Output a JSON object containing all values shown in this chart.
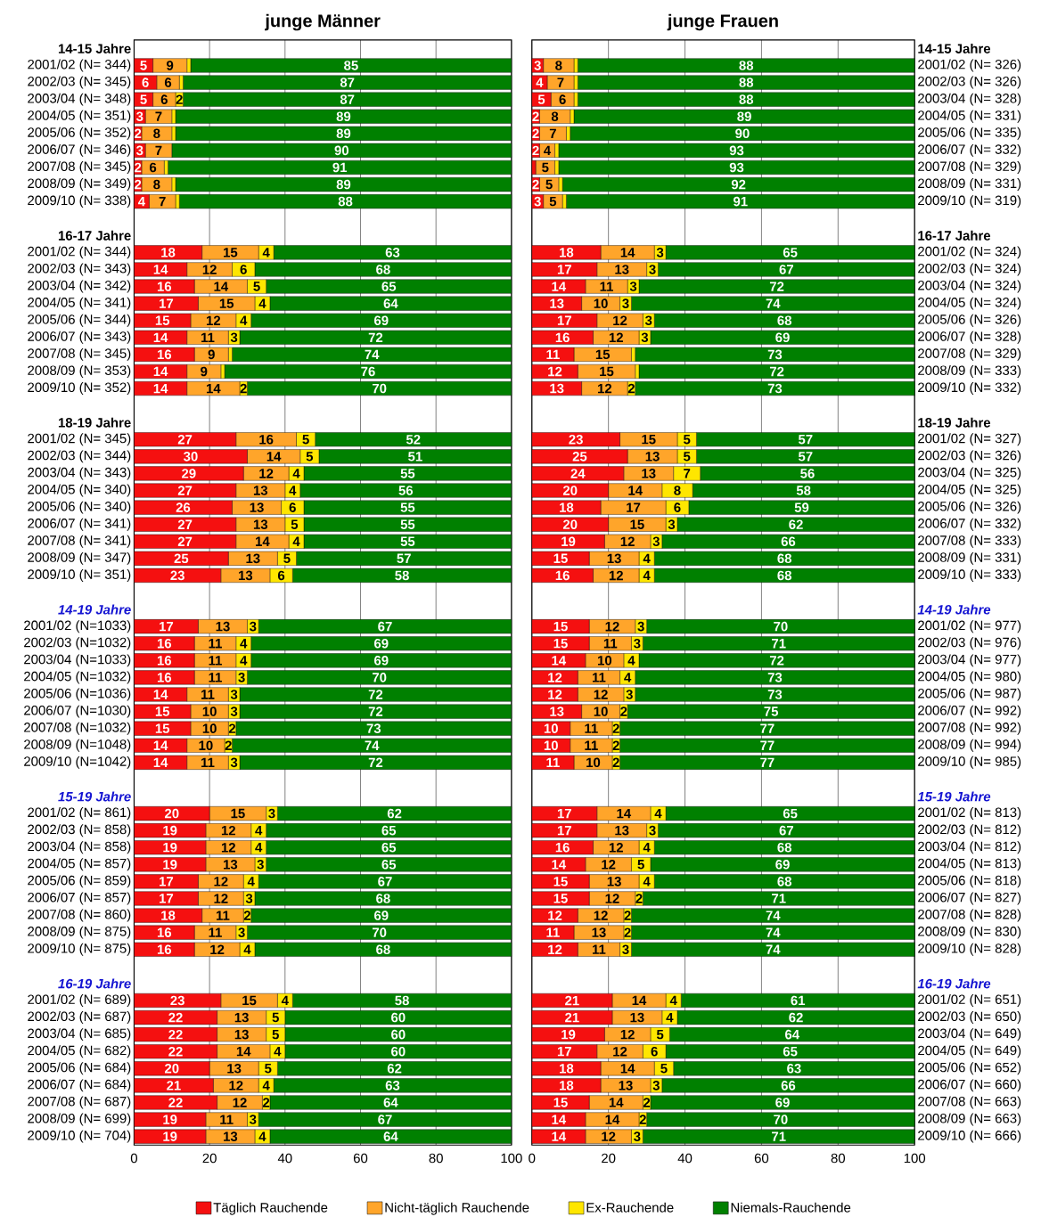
{
  "chart_data": [
    {
      "type": "bar",
      "orientation": "horizontal",
      "stacked": true,
      "title": "junge Männer",
      "xlim": [
        0,
        100
      ],
      "xticks": [
        0,
        20,
        40,
        60,
        80,
        100
      ],
      "grid": "x",
      "legend": "bottom",
      "categories": [
        "14-15 Jahre",
        "2001/02 (N= 344)",
        "2002/03 (N= 345)",
        "2003/04 (N= 348)",
        "2004/05 (N= 351)",
        "2005/06 (N= 352)",
        "2006/07 (N= 346)",
        "2007/08 (N= 345)",
        "2008/09 (N= 349)",
        "2009/10 (N= 338)",
        null,
        "16-17 Jahre",
        "2001/02 (N= 344)",
        "2002/03 (N= 343)",
        "2003/04 (N= 342)",
        "2004/05 (N= 341)",
        "2005/06 (N= 344)",
        "2006/07 (N= 343)",
        "2007/08 (N= 345)",
        "2008/09 (N= 353)",
        "2009/10 (N= 352)",
        null,
        "18-19 Jahre",
        "2001/02 (N= 345)",
        "2002/03 (N= 344)",
        "2003/04 (N= 343)",
        "2004/05 (N= 340)",
        "2005/06 (N= 340)",
        "2006/07 (N= 341)",
        "2007/08 (N= 341)",
        "2008/09 (N= 347)",
        "2009/10 (N= 351)",
        null,
        "14-19 Jahre",
        "2001/02 (N=1033)",
        "2002/03 (N=1032)",
        "2003/04 (N=1033)",
        "2004/05 (N=1032)",
        "2005/06 (N=1036)",
        "2006/07 (N=1030)",
        "2007/08 (N=1032)",
        "2008/09 (N=1048)",
        "2009/10 (N=1042)",
        null,
        "15-19 Jahre",
        "2001/02 (N= 861)",
        "2002/03 (N= 858)",
        "2003/04 (N= 858)",
        "2004/05 (N= 857)",
        "2005/06 (N= 859)",
        "2006/07 (N= 857)",
        "2007/08 (N= 860)",
        "2008/09 (N= 875)",
        "2009/10 (N= 875)",
        null,
        "16-19 Jahre",
        "2001/02 (N= 689)",
        "2002/03 (N= 687)",
        "2003/04 (N= 685)",
        "2004/05 (N= 682)",
        "2005/06 (N= 684)",
        "2006/07 (N= 684)",
        "2007/08 (N= 687)",
        "2008/09 (N= 699)",
        "2009/10 (N= 704)"
      ],
      "series": [
        {
          "name": "Täglich Rauchende",
          "color": "#f51010",
          "values": [
            null,
            5,
            6,
            5,
            3,
            2,
            3,
            2,
            2,
            4,
            null,
            null,
            18,
            14,
            16,
            17,
            15,
            14,
            16,
            14,
            14,
            null,
            null,
            27,
            30,
            29,
            27,
            26,
            27,
            27,
            25,
            23,
            null,
            null,
            17,
            16,
            16,
            16,
            14,
            15,
            15,
            14,
            14,
            null,
            null,
            20,
            19,
            19,
            19,
            17,
            17,
            18,
            16,
            16,
            null,
            null,
            23,
            22,
            22,
            22,
            20,
            21,
            22,
            19,
            19
          ],
          "value_labels": [
            null,
            "5",
            "6",
            "5",
            "3",
            "2",
            "3",
            "2",
            "2",
            "4",
            null,
            null,
            "18",
            "14",
            "16",
            "17",
            "15",
            "14",
            "16",
            "14",
            "14",
            null,
            null,
            "27",
            "30",
            "29",
            "27",
            "26",
            "27",
            "27",
            "25",
            "23",
            null,
            null,
            "17",
            "16",
            "16",
            "16",
            "14",
            "15",
            "15",
            "14",
            "14",
            null,
            null,
            "20",
            "19",
            "19",
            "19",
            "17",
            "17",
            "18",
            "16",
            "16",
            null,
            null,
            "23",
            "22",
            "22",
            "22",
            "20",
            "21",
            "22",
            "19",
            "19"
          ]
        },
        {
          "name": "Nicht-täglich Rauchende",
          "color": "#ffa52a",
          "values": [
            null,
            9,
            6,
            6,
            7,
            8,
            7,
            6,
            8,
            7,
            null,
            null,
            15,
            12,
            14,
            15,
            12,
            11,
            9,
            9,
            14,
            null,
            null,
            16,
            14,
            12,
            13,
            13,
            13,
            14,
            13,
            13,
            null,
            null,
            13,
            11,
            11,
            11,
            11,
            10,
            10,
            10,
            11,
            null,
            null,
            15,
            12,
            12,
            13,
            12,
            12,
            11,
            11,
            12,
            null,
            null,
            15,
            13,
            13,
            14,
            13,
            12,
            12,
            11,
            13
          ],
          "value_labels": [
            null,
            "9",
            "6",
            "6",
            "7",
            "8",
            "7",
            "6",
            "8",
            "7",
            null,
            null,
            "15",
            "12",
            "14",
            "15",
            "12",
            "11",
            "9",
            "9",
            "14",
            null,
            null,
            "16",
            "14",
            "12",
            "13",
            "13",
            "13",
            "14",
            "13",
            "13",
            null,
            null,
            "13",
            "11",
            "11",
            "11",
            "11",
            "10",
            "10",
            "10",
            "11",
            null,
            null,
            "15",
            "12",
            "12",
            "13",
            "12",
            "12",
            "11",
            "11",
            "12",
            null,
            null,
            "15",
            "13",
            "13",
            "14",
            "13",
            "12",
            "12",
            "11",
            "13"
          ]
        },
        {
          "name": "Ex-Rauchende",
          "color": "#ffe600",
          "values": [
            null,
            1,
            1,
            2,
            1,
            1,
            0,
            1,
            1,
            1,
            null,
            null,
            4,
            6,
            5,
            4,
            4,
            3,
            1,
            1,
            2,
            null,
            null,
            5,
            5,
            4,
            4,
            6,
            5,
            4,
            5,
            6,
            null,
            null,
            3,
            4,
            4,
            3,
            3,
            3,
            2,
            2,
            3,
            null,
            null,
            3,
            4,
            4,
            3,
            4,
            3,
            2,
            3,
            4,
            null,
            null,
            4,
            5,
            5,
            4,
            5,
            4,
            2,
            3,
            4
          ],
          "value_labels": [
            null,
            null,
            null,
            "2",
            null,
            null,
            null,
            null,
            null,
            null,
            null,
            null,
            "4",
            "6",
            "5",
            "4",
            "4",
            "3",
            null,
            null,
            "2",
            null,
            null,
            "5",
            "5",
            "4",
            "4",
            "6",
            "5",
            "4",
            "5",
            "6",
            null,
            null,
            "3",
            "4",
            "4",
            "3",
            "3",
            "3",
            "2",
            "2",
            "3",
            null,
            null,
            "3",
            "4",
            "4",
            "3",
            "4",
            "3",
            "2",
            "3",
            "4",
            null,
            null,
            "4",
            "5",
            "5",
            "4",
            "5",
            "4",
            "2",
            "3",
            "4"
          ]
        },
        {
          "name": "Niemals-Rauchende",
          "color": "#008000",
          "values": [
            null,
            85,
            87,
            87,
            89,
            89,
            90,
            91,
            89,
            88,
            null,
            null,
            63,
            68,
            65,
            64,
            69,
            72,
            74,
            76,
            70,
            null,
            null,
            52,
            51,
            55,
            56,
            55,
            55,
            55,
            57,
            58,
            null,
            null,
            67,
            69,
            69,
            70,
            72,
            72,
            73,
            74,
            72,
            null,
            null,
            62,
            65,
            65,
            65,
            67,
            68,
            69,
            70,
            68,
            null,
            null,
            58,
            60,
            60,
            60,
            62,
            63,
            64,
            67,
            64
          ],
          "value_labels": [
            null,
            "85",
            "87",
            "87",
            "89",
            "89",
            "90",
            "91",
            "89",
            "88",
            null,
            null,
            "63",
            "68",
            "65",
            "64",
            "69",
            "72",
            "74",
            "76",
            "70",
            null,
            null,
            "52",
            "51",
            "55",
            "56",
            "55",
            "55",
            "55",
            "57",
            "58",
            null,
            null,
            "67",
            "69",
            "69",
            "70",
            "72",
            "72",
            "73",
            "74",
            "72",
            null,
            null,
            "62",
            "65",
            "65",
            "65",
            "67",
            "68",
            "69",
            "70",
            "68",
            null,
            null,
            "58",
            "60",
            "60",
            "60",
            "62",
            "63",
            "64",
            "67",
            "64"
          ]
        }
      ]
    },
    {
      "type": "bar",
      "orientation": "horizontal",
      "stacked": true,
      "title": "junge Frauen",
      "xlim": [
        0,
        100
      ],
      "xticks": [
        0,
        20,
        40,
        60,
        80,
        100
      ],
      "grid": "x",
      "categories": [
        "14-15 Jahre",
        "2001/02 (N= 326)",
        "2002/03 (N= 326)",
        "2003/04 (N= 328)",
        "2004/05 (N= 331)",
        "2005/06 (N= 335)",
        "2006/07 (N= 332)",
        "2007/08 (N= 329)",
        "2008/09 (N= 331)",
        "2009/10 (N= 319)",
        null,
        "16-17 Jahre",
        "2001/02 (N= 324)",
        "2002/03 (N= 324)",
        "2003/04 (N= 324)",
        "2004/05 (N= 324)",
        "2005/06 (N= 326)",
        "2006/07 (N= 328)",
        "2007/08 (N= 329)",
        "2008/09 (N= 333)",
        "2009/10 (N= 332)",
        null,
        "18-19 Jahre",
        "2001/02 (N= 327)",
        "2002/03 (N= 326)",
        "2003/04 (N= 325)",
        "2004/05 (N= 325)",
        "2005/06 (N= 326)",
        "2006/07 (N= 332)",
        "2007/08 (N= 333)",
        "2008/09 (N= 331)",
        "2009/10 (N= 333)",
        null,
        "14-19 Jahre",
        "2001/02 (N= 977)",
        "2002/03 (N= 976)",
        "2003/04 (N= 977)",
        "2004/05 (N= 980)",
        "2005/06 (N= 987)",
        "2006/07 (N= 992)",
        "2007/08 (N= 992)",
        "2008/09 (N= 994)",
        "2009/10 (N= 985)",
        null,
        "15-19 Jahre",
        "2001/02 (N= 813)",
        "2002/03 (N= 812)",
        "2003/04 (N= 812)",
        "2004/05 (N= 813)",
        "2005/06 (N= 818)",
        "2006/07 (N= 827)",
        "2007/08 (N= 828)",
        "2008/09 (N= 830)",
        "2009/10 (N= 828)",
        null,
        "16-19 Jahre",
        "2001/02 (N= 651)",
        "2002/03 (N= 650)",
        "2003/04 (N= 649)",
        "2004/05 (N= 649)",
        "2005/06 (N= 652)",
        "2006/07 (N= 660)",
        "2007/08 (N= 663)",
        "2008/09 (N= 663)",
        "2009/10 (N= 666)"
      ],
      "series": [
        {
          "color": "#f51010",
          "values": [
            null,
            3,
            4,
            5,
            2,
            2,
            2,
            1,
            2,
            3,
            null,
            null,
            18,
            17,
            14,
            13,
            17,
            16,
            11,
            12,
            13,
            null,
            null,
            23,
            25,
            24,
            20,
            18,
            20,
            19,
            15,
            16,
            null,
            null,
            15,
            15,
            14,
            12,
            12,
            13,
            10,
            10,
            11,
            null,
            null,
            17,
            17,
            16,
            14,
            15,
            15,
            12,
            11,
            12,
            null,
            null,
            21,
            21,
            19,
            17,
            18,
            18,
            15,
            14,
            14
          ],
          "value_labels": [
            null,
            "3",
            "4",
            "5",
            "2",
            "2",
            "2",
            null,
            "2",
            "3",
            null,
            null,
            "18",
            "17",
            "14",
            "13",
            "17",
            "16",
            "11",
            "12",
            "13",
            null,
            null,
            "23",
            "25",
            "24",
            "20",
            "18",
            "20",
            "19",
            "15",
            "16",
            null,
            null,
            "15",
            "15",
            "14",
            "12",
            "12",
            "13",
            "10",
            "10",
            "11",
            null,
            null,
            "17",
            "17",
            "16",
            "14",
            "15",
            "15",
            "12",
            "11",
            "12",
            null,
            null,
            "21",
            "21",
            "19",
            "17",
            "18",
            "18",
            "15",
            "14",
            "14"
          ]
        },
        {
          "color": "#ffa52a",
          "values": [
            null,
            8,
            7,
            6,
            8,
            7,
            4,
            5,
            5,
            5,
            null,
            null,
            14,
            13,
            11,
            10,
            12,
            12,
            15,
            15,
            12,
            null,
            null,
            15,
            13,
            13,
            14,
            17,
            15,
            12,
            13,
            12,
            null,
            null,
            12,
            11,
            10,
            11,
            12,
            10,
            11,
            11,
            10,
            null,
            null,
            14,
            13,
            12,
            12,
            13,
            12,
            12,
            13,
            11,
            null,
            null,
            14,
            13,
            12,
            12,
            14,
            13,
            14,
            14,
            12
          ],
          "value_labels": [
            null,
            "8",
            "7",
            "6",
            "8",
            "7",
            "4",
            "5",
            "5",
            "5",
            null,
            null,
            "14",
            "13",
            "11",
            "10",
            "12",
            "12",
            "15",
            "15",
            "12",
            null,
            null,
            "15",
            "13",
            "13",
            "14",
            "17",
            "15",
            "12",
            "13",
            "12",
            null,
            null,
            "12",
            "11",
            "10",
            "11",
            "12",
            "10",
            "11",
            "11",
            "10",
            null,
            null,
            "14",
            "13",
            "12",
            "12",
            "13",
            "12",
            "12",
            "13",
            "11",
            null,
            null,
            "14",
            "13",
            "12",
            "12",
            "14",
            "13",
            "14",
            "14",
            "12"
          ]
        },
        {
          "color": "#ffe600",
          "values": [
            null,
            1,
            1,
            1,
            1,
            1,
            1,
            1,
            1,
            1,
            null,
            null,
            3,
            3,
            3,
            3,
            3,
            3,
            1,
            1,
            2,
            null,
            null,
            5,
            5,
            7,
            8,
            6,
            3,
            3,
            4,
            4,
            null,
            null,
            3,
            3,
            4,
            4,
            3,
            2,
            2,
            2,
            2,
            null,
            null,
            4,
            3,
            4,
            5,
            4,
            2,
            2,
            2,
            3,
            null,
            null,
            4,
            4,
            5,
            6,
            5,
            3,
            2,
            2,
            3
          ],
          "value_labels": [
            null,
            null,
            null,
            null,
            null,
            null,
            null,
            null,
            null,
            null,
            null,
            null,
            "3",
            "3",
            "3",
            "3",
            "3",
            "3",
            null,
            null,
            "2",
            null,
            null,
            "5",
            "5",
            "7",
            "8",
            "6",
            "3",
            "3",
            "4",
            "4",
            null,
            null,
            "3",
            "3",
            "4",
            "4",
            "3",
            "2",
            "2",
            "2",
            "2",
            null,
            null,
            "4",
            "3",
            "4",
            "5",
            "4",
            "2",
            "2",
            "2",
            "3",
            null,
            null,
            "4",
            "4",
            "5",
            "6",
            "5",
            "3",
            "2",
            "2",
            "3"
          ]
        },
        {
          "color": "#008000",
          "values": [
            null,
            88,
            88,
            88,
            89,
            90,
            93,
            93,
            92,
            91,
            null,
            null,
            65,
            67,
            72,
            74,
            68,
            69,
            73,
            72,
            73,
            null,
            null,
            57,
            57,
            56,
            58,
            59,
            62,
            66,
            68,
            68,
            null,
            null,
            70,
            71,
            72,
            73,
            73,
            75,
            77,
            77,
            77,
            null,
            null,
            65,
            67,
            68,
            69,
            68,
            71,
            74,
            74,
            74,
            null,
            null,
            61,
            62,
            64,
            65,
            63,
            66,
            69,
            70,
            71
          ],
          "value_labels": [
            null,
            "88",
            "88",
            "88",
            "89",
            "90",
            "93",
            "93",
            "92",
            "91",
            null,
            null,
            "65",
            "67",
            "72",
            "74",
            "68",
            "69",
            "73",
            "72",
            "73",
            null,
            null,
            "57",
            "57",
            "56",
            "58",
            "59",
            "62",
            "66",
            "68",
            "68",
            null,
            null,
            "70",
            "71",
            "72",
            "73",
            "73",
            "75",
            "77",
            "77",
            "77",
            null,
            null,
            "65",
            "67",
            "68",
            "69",
            "68",
            "71",
            "74",
            "74",
            "74",
            null,
            null,
            "61",
            "62",
            "64",
            "65",
            "63",
            "66",
            "69",
            "70",
            "71"
          ]
        }
      ]
    }
  ]
}
